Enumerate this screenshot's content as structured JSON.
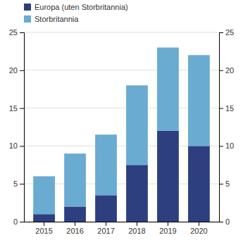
{
  "chart_data": {
    "type": "bar",
    "stacked": true,
    "categories": [
      "2015",
      "2016",
      "2017",
      "2018",
      "2019",
      "2020"
    ],
    "series": [
      {
        "name": "Europa (uten Storbritannia)",
        "color": "#2E3F7F",
        "values": [
          1.0,
          2.0,
          3.5,
          7.5,
          12.0,
          10.0
        ]
      },
      {
        "name": "Storbritannia",
        "color": "#6AABD2",
        "values": [
          5.0,
          7.0,
          8.0,
          10.5,
          11.0,
          12.0
        ]
      }
    ],
    "ylim": [
      0,
      25
    ],
    "yticks": [
      0,
      5,
      10,
      15,
      20,
      25
    ],
    "y2lim": [
      0,
      25
    ],
    "y2ticks": [
      0,
      5,
      10,
      15,
      20,
      25
    ],
    "grid": true,
    "legend": "upper left"
  }
}
